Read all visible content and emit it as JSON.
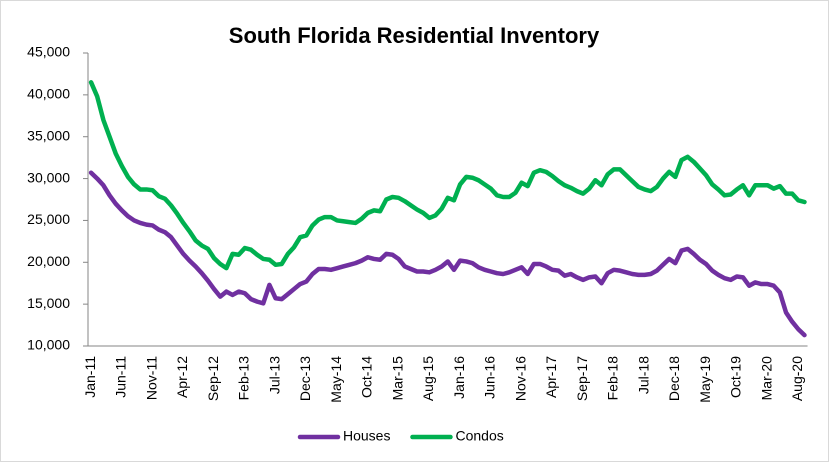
{
  "chart_data": {
    "type": "line",
    "title": "South Florida Residential Inventory",
    "categories": [
      "Jan-11",
      null,
      null,
      null,
      null,
      "Jun-11",
      null,
      null,
      null,
      null,
      "Nov-11",
      null,
      null,
      null,
      null,
      "Apr-12",
      null,
      null,
      null,
      null,
      "Sep-12",
      null,
      null,
      null,
      null,
      "Feb-13",
      null,
      null,
      null,
      null,
      "Jul-13",
      null,
      null,
      null,
      null,
      "Dec-13",
      null,
      null,
      null,
      null,
      "May-14",
      null,
      null,
      null,
      null,
      "Oct-14",
      null,
      null,
      null,
      null,
      "Mar-15",
      null,
      null,
      null,
      null,
      "Aug-15",
      null,
      null,
      null,
      null,
      "Jan-16",
      null,
      null,
      null,
      null,
      "Jun-16",
      null,
      null,
      null,
      null,
      "Nov-16",
      null,
      null,
      null,
      null,
      "Apr-17",
      null,
      null,
      null,
      null,
      "Sep-17",
      null,
      null,
      null,
      null,
      "Feb-18",
      null,
      null,
      null,
      null,
      "Jul-18",
      null,
      null,
      null,
      null,
      "Dec-18",
      null,
      null,
      null,
      null,
      "May-19",
      null,
      null,
      null,
      null,
      "Oct-19",
      null,
      null,
      null,
      null,
      "Mar-20",
      null,
      null,
      null,
      null,
      "Aug-20",
      null
    ],
    "series": [
      {
        "name": "Houses",
        "color": "#7030a0",
        "values": [
          30700,
          30000,
          29200,
          28000,
          27000,
          26200,
          25500,
          25000,
          24700,
          24500,
          24400,
          23900,
          23600,
          23000,
          22000,
          21000,
          20200,
          19500,
          18700,
          17800,
          16800,
          15900,
          16500,
          16100,
          16500,
          16300,
          15600,
          15300,
          15100,
          17300,
          15700,
          15600,
          16200,
          16800,
          17400,
          17700,
          18600,
          19200,
          19200,
          19100,
          19300,
          19500,
          19700,
          19900,
          20200,
          20600,
          20400,
          20300,
          21000,
          20900,
          20400,
          19500,
          19200,
          18900,
          18900,
          18800,
          19100,
          19500,
          20100,
          19100,
          20200,
          20100,
          19900,
          19400,
          19100,
          18900,
          18700,
          18600,
          18800,
          19100,
          19400,
          18600,
          19800,
          19800,
          19500,
          19100,
          19000,
          18400,
          18600,
          18200,
          17900,
          18200,
          18300,
          17500,
          18700,
          19100,
          19000,
          18800,
          18600,
          18500,
          18500,
          18600,
          19000,
          19700,
          20400,
          19900,
          21400,
          21600,
          21000,
          20300,
          19800,
          19000,
          18500,
          18100,
          17900,
          18300,
          18200,
          17200,
          17600,
          17400,
          17400,
          17200,
          16400,
          14000,
          12900,
          12000,
          11300
        ]
      },
      {
        "name": "Condos",
        "color": "#00b050",
        "values": [
          41500,
          39800,
          37000,
          35000,
          33000,
          31500,
          30200,
          29300,
          28700,
          28700,
          28600,
          27900,
          27600,
          26800,
          25800,
          24700,
          23700,
          22600,
          22000,
          21600,
          20500,
          19800,
          19300,
          21000,
          20900,
          21700,
          21500,
          20900,
          20400,
          20300,
          19700,
          19800,
          21000,
          21800,
          23000,
          23200,
          24400,
          25100,
          25400,
          25400,
          25000,
          24900,
          24800,
          24700,
          25200,
          25900,
          26200,
          26100,
          27500,
          27800,
          27700,
          27300,
          26800,
          26300,
          25900,
          25300,
          25600,
          26400,
          27700,
          27400,
          29300,
          30200,
          30100,
          29800,
          29300,
          28800,
          28000,
          27800,
          27800,
          28300,
          29500,
          29100,
          30700,
          31000,
          30800,
          30300,
          29700,
          29200,
          28900,
          28500,
          28200,
          28800,
          29800,
          29200,
          30500,
          31100,
          31100,
          30400,
          29700,
          29000,
          28700,
          28500,
          29000,
          30000,
          30800,
          30200,
          32200,
          32600,
          32000,
          31200,
          30400,
          29300,
          28700,
          28000,
          28100,
          28700,
          29200,
          28000,
          29200,
          29200,
          29200,
          28800,
          29100,
          28200,
          28200,
          27400,
          27200
        ]
      }
    ],
    "ylim": [
      10000,
      45000
    ],
    "yticks": [
      {
        "value": 10000,
        "label": "10,000"
      },
      {
        "value": 15000,
        "label": "15,000"
      },
      {
        "value": 20000,
        "label": "20,000"
      },
      {
        "value": 25000,
        "label": "25,000"
      },
      {
        "value": 30000,
        "label": "30,000"
      },
      {
        "value": 35000,
        "label": "35,000"
      },
      {
        "value": 40000,
        "label": "40,000"
      },
      {
        "value": 45000,
        "label": "45,000"
      }
    ],
    "legend": "bottom"
  }
}
